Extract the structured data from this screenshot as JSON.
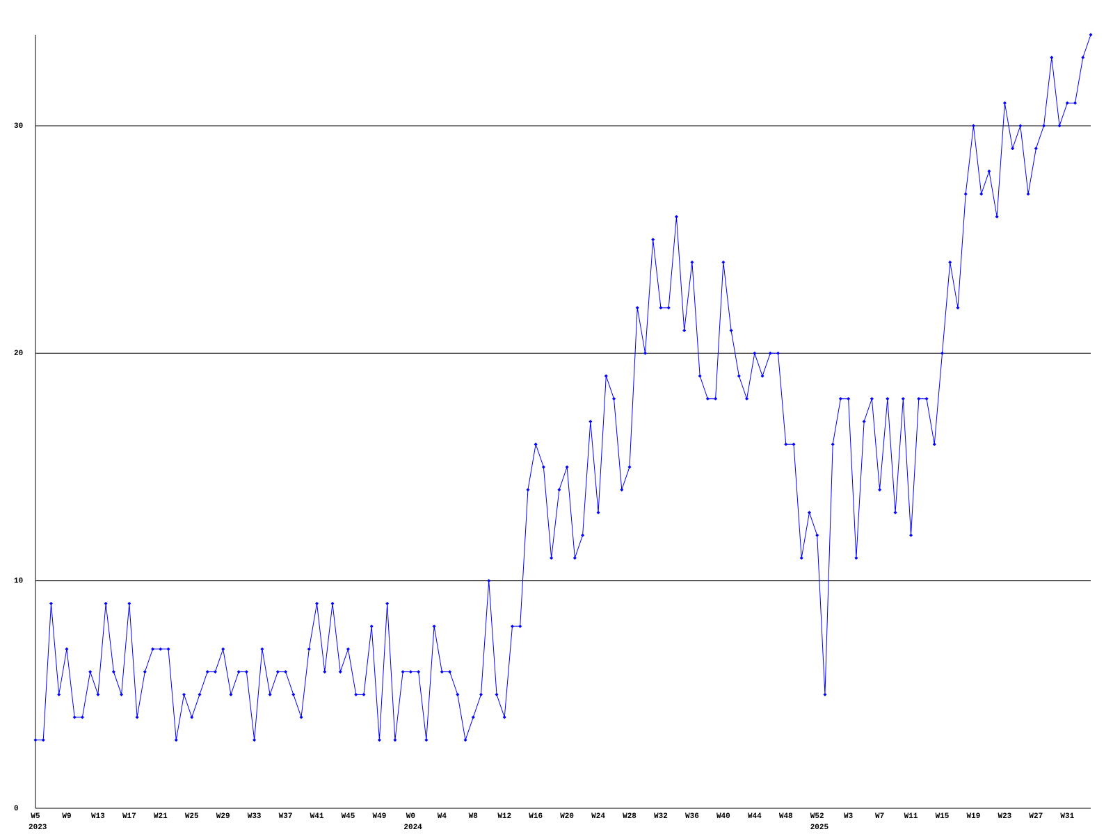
{
  "chart_data": {
    "type": "line",
    "color": "#0000ff",
    "grid": true,
    "categories": [
      "W5",
      null,
      null,
      null,
      "W9",
      null,
      null,
      null,
      "W13",
      null,
      null,
      null,
      "W17",
      null,
      null,
      null,
      "W21",
      null,
      null,
      null,
      "W25",
      null,
      null,
      null,
      "W29",
      null,
      null,
      null,
      "W33",
      null,
      null,
      null,
      "W37",
      null,
      null,
      null,
      "W41",
      null,
      null,
      null,
      "W45",
      null,
      null,
      null,
      "W49",
      null,
      null,
      null,
      "W0",
      null,
      null,
      null,
      "W4",
      null,
      null,
      null,
      "W8",
      null,
      null,
      null,
      "W12",
      null,
      null,
      null,
      "W16",
      null,
      null,
      null,
      "W20",
      null,
      null,
      null,
      "W24",
      null,
      null,
      null,
      "W28",
      null,
      null,
      null,
      "W32",
      null,
      null,
      null,
      "W36",
      null,
      null,
      null,
      "W40",
      null,
      null,
      null,
      "W44",
      null,
      null,
      null,
      "W48",
      null,
      null,
      null,
      "W52",
      null,
      null,
      null,
      "W3",
      null,
      null,
      null,
      "W7",
      null,
      null,
      null,
      "W11",
      null,
      null,
      null,
      "W15",
      null,
      null,
      null,
      "W19",
      null,
      null,
      null,
      "W23",
      null,
      null,
      null,
      "W27",
      null,
      null,
      null,
      "W31",
      null,
      null,
      null
    ],
    "years": [
      "2023",
      null,
      null,
      null,
      null,
      null,
      null,
      null,
      null,
      null,
      null,
      null,
      null,
      null,
      null,
      null,
      null,
      null,
      null,
      null,
      null,
      null,
      null,
      null,
      null,
      null,
      null,
      null,
      null,
      null,
      null,
      null,
      null,
      null,
      null,
      null,
      null,
      null,
      null,
      null,
      null,
      null,
      null,
      null,
      null,
      null,
      null,
      null,
      "2024",
      null,
      null,
      null,
      null,
      null,
      null,
      null,
      null,
      null,
      null,
      null,
      null,
      null,
      null,
      null,
      null,
      null,
      null,
      null,
      null,
      null,
      null,
      null,
      null,
      null,
      null,
      null,
      null,
      null,
      null,
      null,
      null,
      null,
      null,
      null,
      null,
      null,
      null,
      null,
      null,
      null,
      null,
      null,
      null,
      null,
      null,
      null,
      null,
      null,
      null,
      null,
      "2025",
      null,
      null,
      null,
      null,
      null,
      null,
      null,
      null,
      null,
      null,
      null,
      null,
      null,
      null,
      null,
      null,
      null,
      null,
      null,
      null,
      null,
      null,
      null,
      null,
      null,
      null,
      null,
      null,
      null,
      null,
      null,
      null,
      null,
      null,
      null
    ],
    "values": [
      3,
      3,
      9,
      5,
      7,
      4,
      4,
      6,
      5,
      9,
      6,
      5,
      9,
      4,
      6,
      7,
      7,
      7,
      3,
      5,
      4,
      5,
      6,
      6,
      7,
      5,
      6,
      6,
      3,
      7,
      5,
      6,
      6,
      5,
      4,
      7,
      9,
      6,
      9,
      6,
      7,
      5,
      5,
      8,
      3,
      9,
      3,
      6,
      6,
      6,
      3,
      8,
      6,
      6,
      5,
      3,
      4,
      5,
      10,
      5,
      4,
      8,
      8,
      14,
      16,
      15,
      11,
      14,
      15,
      11,
      12,
      17,
      13,
      19,
      18,
      14,
      15,
      22,
      20,
      25,
      22,
      22,
      26,
      21,
      24,
      19,
      18,
      18,
      24,
      21,
      19,
      18,
      20,
      19,
      20,
      20,
      16,
      16,
      11,
      13,
      12,
      5,
      16,
      18,
      18,
      11,
      17,
      18,
      14,
      18,
      13,
      18,
      12,
      18,
      18,
      16,
      20,
      24,
      22,
      27,
      30,
      27,
      28,
      26,
      31,
      29,
      30,
      27,
      29,
      30,
      33,
      30,
      31,
      31,
      33,
      34
    ],
    "ylim": [
      0,
      34
    ],
    "yticks": [
      0,
      10,
      20,
      30
    ]
  }
}
